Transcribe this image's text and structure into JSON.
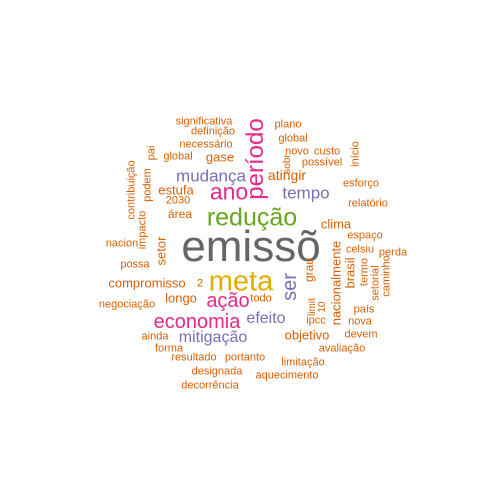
{
  "colors": {
    "gray": "#666666",
    "orange": "#d95f02",
    "purple": "#7570b3",
    "pink": "#e7298a",
    "green": "#66a61e",
    "gold": "#e6ab02"
  },
  "words": [
    {
      "text": "emissõ",
      "color": "#666666",
      "weight": 10
    },
    {
      "text": "meta",
      "color": "#e6ab02",
      "weight": 8
    },
    {
      "text": "redução",
      "color": "#66a61e",
      "weight": 7
    },
    {
      "text": "período",
      "color": "#e7298a",
      "weight": 7
    },
    {
      "text": "ano",
      "color": "#e7298a",
      "weight": 6
    },
    {
      "text": "economia",
      "color": "#e7298a",
      "weight": 6
    },
    {
      "text": "ação",
      "color": "#e7298a",
      "weight": 6
    },
    {
      "text": "ser",
      "color": "#7570b3",
      "weight": 6
    },
    {
      "text": "mudança",
      "color": "#7570b3",
      "weight": 5
    },
    {
      "text": "tempo",
      "color": "#7570b3",
      "weight": 5
    },
    {
      "text": "mitigação",
      "color": "#7570b3",
      "weight": 5
    },
    {
      "text": "efeito",
      "color": "#7570b3",
      "weight": 5
    },
    {
      "text": "gase",
      "color": "#d95f02",
      "weight": 4
    },
    {
      "text": "estufa",
      "color": "#d95f02",
      "weight": 4
    },
    {
      "text": "atingir",
      "color": "#d95f02",
      "weight": 4
    },
    {
      "text": "clima",
      "color": "#d95f02",
      "weight": 4
    },
    {
      "text": "compromisso",
      "color": "#d95f02",
      "weight": 4
    },
    {
      "text": "longo",
      "color": "#d95f02",
      "weight": 4
    },
    {
      "text": "objetivo",
      "color": "#d95f02",
      "weight": 4
    },
    {
      "text": "brasil",
      "color": "#d95f02",
      "weight": 4
    },
    {
      "text": "grau",
      "color": "#d95f02",
      "weight": 4
    },
    {
      "text": "setor",
      "color": "#d95f02",
      "weight": 4
    },
    {
      "text": "área",
      "color": "#d95f02",
      "weight": 3
    },
    {
      "text": "nacionalmente",
      "color": "#d95f02",
      "weight": 3
    },
    {
      "text": "significativa",
      "color": "#d95f02",
      "weight": 2
    },
    {
      "text": "plano",
      "color": "#d95f02",
      "weight": 2
    },
    {
      "text": "definição",
      "color": "#d95f02",
      "weight": 2
    },
    {
      "text": "global",
      "color": "#d95f02",
      "weight": 2
    },
    {
      "text": "necessário",
      "color": "#d95f02",
      "weight": 2
    },
    {
      "text": "novo",
      "color": "#d95f02",
      "weight": 2
    },
    {
      "text": "custo",
      "color": "#d95f02",
      "weight": 2
    },
    {
      "text": "início",
      "color": "#d95f02",
      "weight": 2
    },
    {
      "text": "pai",
      "color": "#d95f02",
      "weight": 2
    },
    {
      "text": "global",
      "color": "#d95f02",
      "weight": 2
    },
    {
      "text": "sobr",
      "color": "#d95f02",
      "weight": 2
    },
    {
      "text": "possível",
      "color": "#d95f02",
      "weight": 2
    },
    {
      "text": "contribuição",
      "color": "#d95f02",
      "weight": 2
    },
    {
      "text": "podem",
      "color": "#d95f02",
      "weight": 2
    },
    {
      "text": "esforço",
      "color": "#d95f02",
      "weight": 2
    },
    {
      "text": "2030",
      "color": "#d95f02",
      "weight": 2
    },
    {
      "text": "relatório",
      "color": "#d95f02",
      "weight": 2
    },
    {
      "text": "impacto",
      "color": "#d95f02",
      "weight": 2
    },
    {
      "text": "nacion",
      "color": "#d95f02",
      "weight": 2
    },
    {
      "text": "espaço",
      "color": "#d95f02",
      "weight": 2
    },
    {
      "text": "celsiu",
      "color": "#d95f02",
      "weight": 2
    },
    {
      "text": "perda",
      "color": "#d95f02",
      "weight": 2
    },
    {
      "text": "possa",
      "color": "#d95f02",
      "weight": 2
    },
    {
      "text": "termo",
      "color": "#d95f02",
      "weight": 2
    },
    {
      "text": "caminho",
      "color": "#d95f02",
      "weight": 2
    },
    {
      "text": "setorial",
      "color": "#d95f02",
      "weight": 2
    },
    {
      "text": "2",
      "color": "#d95f02",
      "weight": 2
    },
    {
      "text": "todo",
      "color": "#d95f02",
      "weight": 2
    },
    {
      "text": "país",
      "color": "#d95f02",
      "weight": 2
    },
    {
      "text": "negociação",
      "color": "#d95f02",
      "weight": 2
    },
    {
      "text": "10",
      "color": "#d95f02",
      "weight": 2
    },
    {
      "text": "nova",
      "color": "#d95f02",
      "weight": 2
    },
    {
      "text": "ainda",
      "color": "#d95f02",
      "weight": 2
    },
    {
      "text": "devem",
      "color": "#d95f02",
      "weight": 2
    },
    {
      "text": "forma",
      "color": "#d95f02",
      "weight": 2
    },
    {
      "text": "ipcc",
      "color": "#d95f02",
      "weight": 2
    },
    {
      "text": "avaliação",
      "color": "#d95f02",
      "weight": 2
    },
    {
      "text": "limit",
      "color": "#d95f02",
      "weight": 2
    },
    {
      "text": "resultado",
      "color": "#d95f02",
      "weight": 2
    },
    {
      "text": "portanto",
      "color": "#d95f02",
      "weight": 2
    },
    {
      "text": "limitação",
      "color": "#d95f02",
      "weight": 2
    },
    {
      "text": "designada",
      "color": "#d95f02",
      "weight": 2
    },
    {
      "text": "aquecimento",
      "color": "#d95f02",
      "weight": 2
    },
    {
      "text": "decorrência",
      "color": "#d95f02",
      "weight": 2
    }
  ]
}
